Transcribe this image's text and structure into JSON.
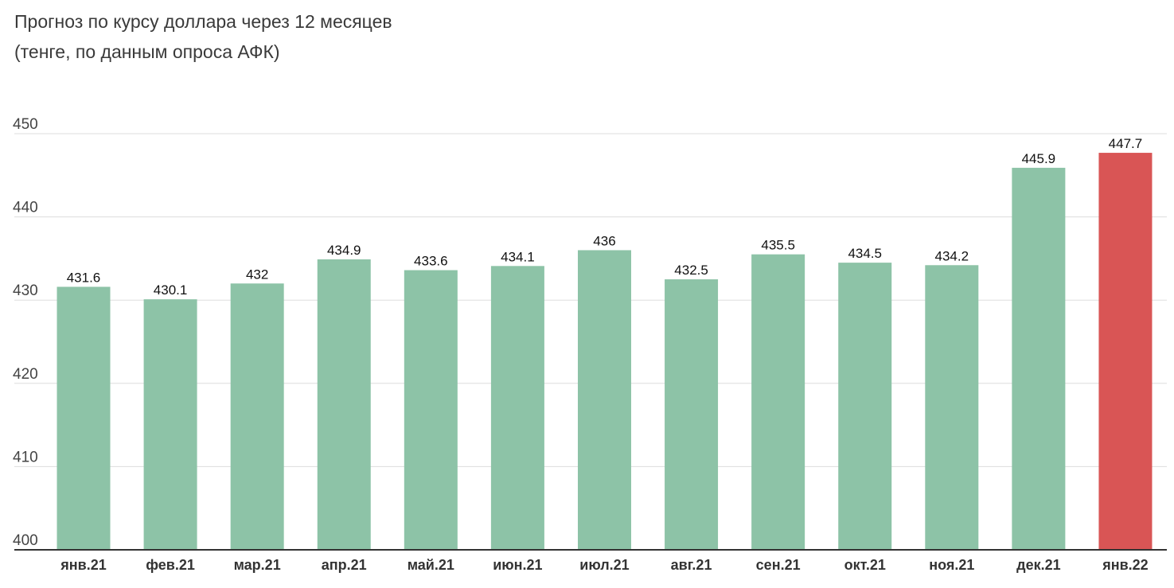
{
  "chart_data": {
    "type": "bar",
    "title": "Прогноз по курсу доллара через 12 месяцев",
    "subtitle": "(тенге, по данным опроса АФК)",
    "xlabel": "",
    "ylabel": "",
    "categories": [
      "янв.21",
      "фев.21",
      "мар.21",
      "апр.21",
      "май.21",
      "июн.21",
      "июл.21",
      "авг.21",
      "сен.21",
      "окт.21",
      "ноя.21",
      "дек.21",
      "янв.22"
    ],
    "values": [
      431.6,
      430.1,
      432,
      434.9,
      433.6,
      434.1,
      436,
      432.5,
      435.5,
      434.5,
      434.2,
      445.9,
      447.7
    ],
    "value_labels": [
      "431.6",
      "430.1",
      "432",
      "434.9",
      "433.6",
      "434.1",
      "436",
      "432.5",
      "435.5",
      "434.5",
      "434.2",
      "445.9",
      "447.7"
    ],
    "ylim": [
      400,
      450
    ],
    "yticks": [
      400,
      410,
      420,
      430,
      440,
      450
    ],
    "grid": true,
    "legend": "none",
    "colors": {
      "bar": "#8dc3a7",
      "highlight": "#d95555",
      "grid": "#dddddd",
      "axis": "#333333"
    },
    "highlight_index": 12
  }
}
